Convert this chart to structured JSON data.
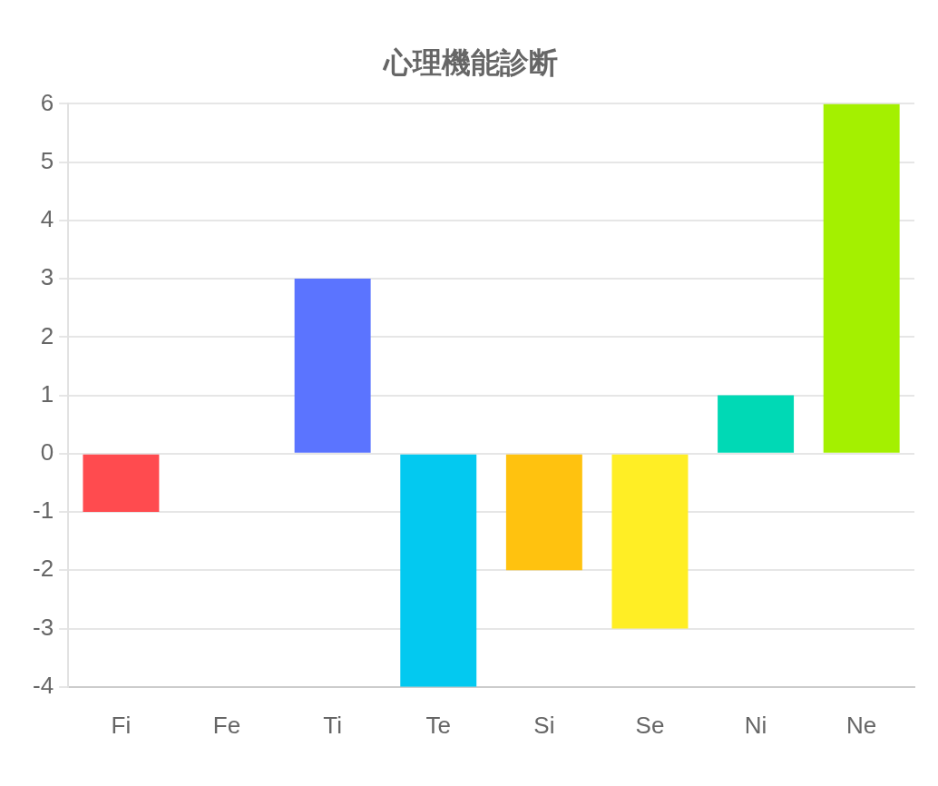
{
  "chart_data": {
    "type": "bar",
    "title": "心理機能診断",
    "categories": [
      "Fi",
      "Fe",
      "Ti",
      "Te",
      "Si",
      "Se",
      "Ni",
      "Ne"
    ],
    "values": [
      -1,
      0,
      3,
      -4,
      -2,
      -3,
      1,
      6
    ],
    "colors": [
      "#ff4b4f",
      "#ff8a3d",
      "#5b74ff",
      "#03c9f0",
      "#ffc20f",
      "#ffee25",
      "#00d9b5",
      "#a4f000"
    ],
    "ylim": [
      -4,
      6
    ],
    "yticks": [
      -4,
      -3,
      -2,
      -1,
      0,
      1,
      2,
      3,
      4,
      5,
      6
    ],
    "grid": "y"
  }
}
